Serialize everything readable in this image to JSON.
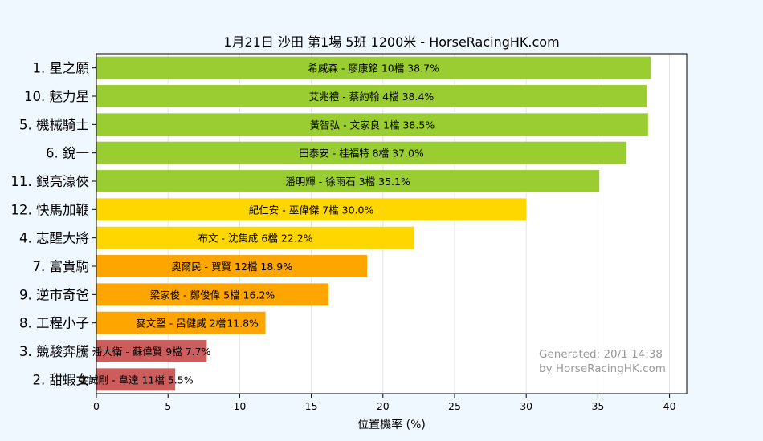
{
  "chart_data": {
    "type": "bar",
    "orientation": "horizontal",
    "title": "1月21日  沙田  第1場  5班  1200米 - HorseRacingHK.com",
    "xlabel": "位置機率 (%)",
    "ylabel": "",
    "xlim": [
      0,
      41.2
    ],
    "xticks": [
      "0",
      "5",
      "10",
      "15",
      "20",
      "25",
      "30",
      "35",
      "40"
    ],
    "grid": "vertical",
    "bars": [
      {
        "horse": "1. 星之願",
        "label": "希威森 - 廖康銘 10檔  38.7%",
        "value": 38.7,
        "color": "#9acd32"
      },
      {
        "horse": "10. 魅力星",
        "label": "艾兆禮 - 蔡約翰 4檔  38.4%",
        "value": 38.4,
        "color": "#9acd32"
      },
      {
        "horse": "5. 機械騎士",
        "label": "黃智弘 - 文家良 1檔  38.5%",
        "value": 38.5,
        "color": "#9acd32"
      },
      {
        "horse": "6. 銳一",
        "label": "田泰安 - 桂福特 8檔  37.0%",
        "value": 37.0,
        "color": "#9acd32"
      },
      {
        "horse": "11. 銀亮濠俠",
        "label": "潘明輝 - 徐雨石 3檔  35.1%",
        "value": 35.1,
        "color": "#9acd32"
      },
      {
        "horse": "12. 快馬加鞭",
        "label": "紀仁安 - 巫偉傑 7檔  30.0%",
        "value": 30.0,
        "color": "#ffd700"
      },
      {
        "horse": "4. 志醒大將",
        "label": "布文 - 沈集成 6檔  22.2%",
        "value": 22.2,
        "color": "#ffd700"
      },
      {
        "horse": "7. 富貴駒",
        "label": "奧爾民 - 賀賢 12檔  18.9%",
        "value": 18.9,
        "color": "#ffa500"
      },
      {
        "horse": "9. 逆市奇爸",
        "label": "梁家俊 - 鄭俊偉 5檔  16.2%",
        "value": 16.2,
        "color": "#ffa500"
      },
      {
        "horse": "8. 工程小子",
        "label": "麥文堅 - 呂健威 2檔",
        "label_suffix": "11.8%",
        "value": 11.8,
        "color": "#ffa500"
      },
      {
        "horse": "3. 競駿奔騰",
        "label": "潘大衛 - 蘇偉賢 9檔  7.7%",
        "value": 7.7,
        "color": "#cd5c5c"
      },
      {
        "horse": "2. 甜蝦女",
        "label": "金誠剛 - 韋達 11檔  5.5%",
        "value": 5.5,
        "color": "#cd5c5c"
      }
    ],
    "footer": [
      "Generated: 20/1 14:38",
      "by HorseRacingHK.com"
    ]
  }
}
